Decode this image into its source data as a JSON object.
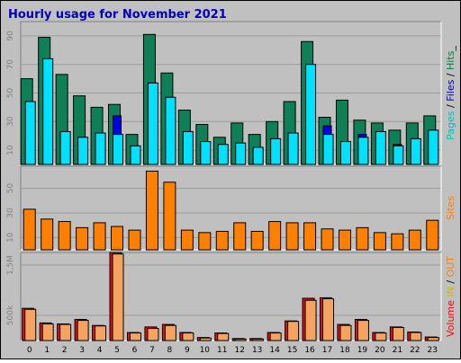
{
  "chart_data": {
    "type": "bar",
    "title": "Hourly usage for November 2021",
    "categories": [
      "0",
      "1",
      "2",
      "3",
      "4",
      "5",
      "6",
      "7",
      "8",
      "9",
      "10",
      "11",
      "12",
      "13",
      "14",
      "15",
      "16",
      "17",
      "18",
      "19",
      "20",
      "21",
      "22",
      "23"
    ],
    "panels": [
      {
        "id": "hits",
        "ylim": [
          0,
          100
        ],
        "yticks": [
          "10",
          "30",
          "50",
          "70",
          "90"
        ],
        "ytick_values": [
          10,
          30,
          50,
          70,
          90
        ],
        "legend": [
          {
            "text": "Pages",
            "color": "#00c0c0"
          },
          {
            "text": " / ",
            "color": "#000000"
          },
          {
            "text": "Files",
            "color": "#0000c0"
          },
          {
            "text": " / ",
            "color": "#000000"
          },
          {
            "text": "Hits",
            "color": "#008040"
          },
          {
            "text": "_",
            "color": "#000000"
          }
        ],
        "series": [
          {
            "name": "Hits",
            "color": "#0f7f58",
            "values": [
              60,
              89,
              63,
              48,
              40,
              42,
              21,
              91,
              64,
              38,
              28,
              19,
              29,
              21,
              30,
              44,
              86,
              33,
              45,
              31,
              29,
              24,
              29,
              34
            ]
          },
          {
            "name": "Files",
            "color": "#0000e0",
            "values": [
              17,
              17,
              20,
              15,
              20,
              34,
              11,
              57,
              22,
              21,
              14,
              11,
              13,
              10,
              13,
              19,
              26,
              27,
              16,
              21,
              15,
              14,
              15,
              22
            ]
          },
          {
            "name": "Pages",
            "color": "#00e0ff",
            "values": [
              44,
              74,
              23,
              19,
              22,
              21,
              13,
              57,
              47,
              23,
              16,
              14,
              15,
              12,
              18,
              22,
              70,
              21,
              16,
              19,
              23,
              13,
              18,
              24
            ]
          }
        ]
      },
      {
        "id": "sites",
        "ylim": [
          0,
          68
        ],
        "yticks": [
          "10",
          "30",
          "50"
        ],
        "ytick_values": [
          10,
          30,
          50
        ],
        "legend": [
          {
            "text": "Sites",
            "color": "#ff8000"
          }
        ],
        "series": [
          {
            "name": "Sites",
            "color": "#ff8000",
            "values": [
              33,
              25,
              23,
              18,
              22,
              19,
              16,
              64,
              55,
              16,
              14,
              15,
              22,
              15,
              23,
              22,
              22,
              17,
              16,
              18,
              14,
              13,
              16,
              24
            ]
          }
        ]
      },
      {
        "id": "volume",
        "ylim": [
          0,
          1.75
        ],
        "yticks": [
          "500k",
          "1,5M"
        ],
        "ytick_values": [
          0.5,
          1.5
        ],
        "legend": [
          {
            "text": "Volume",
            "color": "#ff0000"
          },
          {
            "text": "  ",
            "color": "#000000"
          },
          {
            "text": "IN",
            "color": "#c0c000"
          },
          {
            "text": " / ",
            "color": "#000000"
          },
          {
            "text": "OUT",
            "color": "#ff8000"
          }
        ],
        "series": [
          {
            "name": "Volume",
            "color": "#e81010",
            "values": [
              0.64,
              0.35,
              0.33,
              0.42,
              0.3,
              1.75,
              0.16,
              0.27,
              0.32,
              0.16,
              0.06,
              0.15,
              0.04,
              0.04,
              0.16,
              0.39,
              0.84,
              0.85,
              0.32,
              0.42,
              0.16,
              0.27,
              0.17,
              0.07
            ]
          },
          {
            "name": "OUT",
            "color": "#f4a460",
            "values": [
              0.62,
              0.33,
              0.32,
              0.4,
              0.29,
              1.72,
              0.15,
              0.24,
              0.3,
              0.15,
              0.05,
              0.14,
              0.03,
              0.03,
              0.15,
              0.38,
              0.8,
              0.83,
              0.3,
              0.4,
              0.15,
              0.26,
              0.16,
              0.06
            ]
          }
        ]
      }
    ]
  }
}
